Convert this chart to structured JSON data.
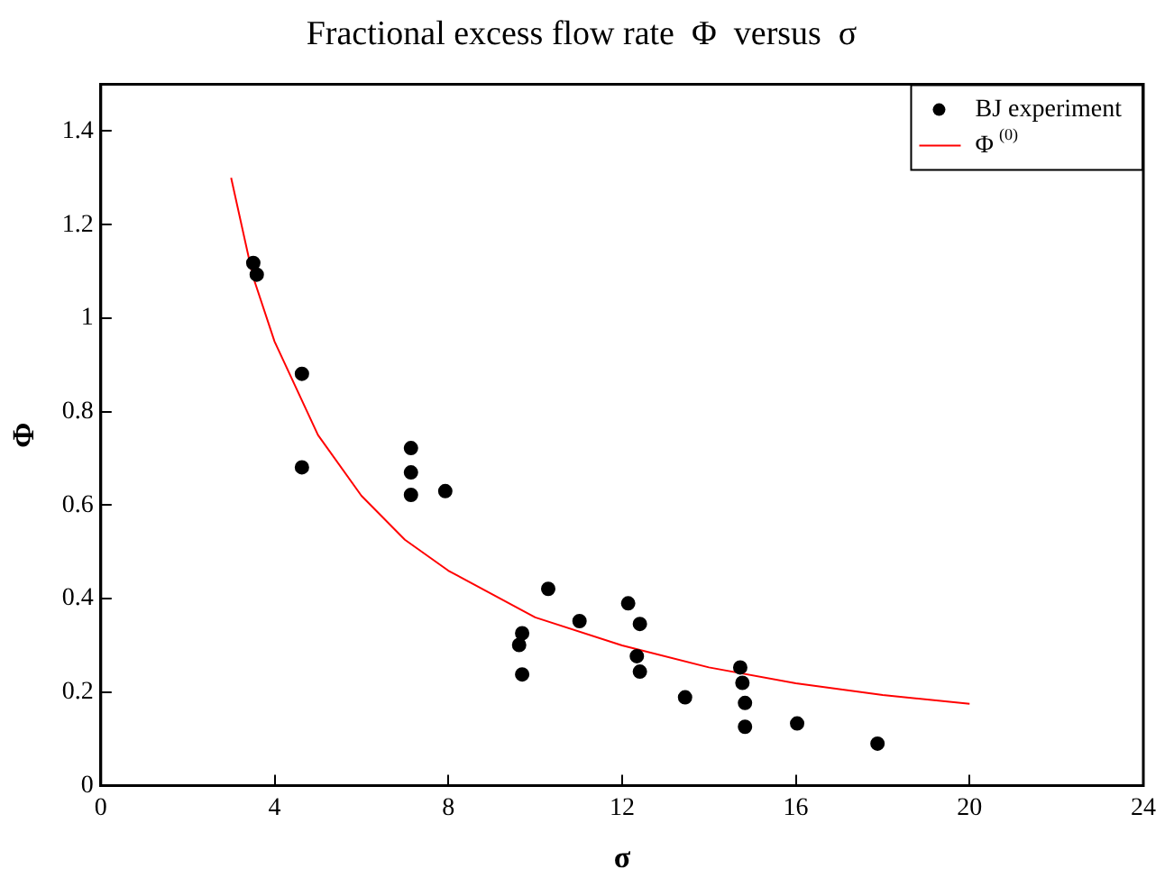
{
  "chart_data": {
    "type": "scatter",
    "title": "Fractional excess flow rate  Φ  versus  σ",
    "xlabel": "σ",
    "ylabel": "Φ",
    "xlim": [
      0,
      24
    ],
    "xticks": [
      0,
      4,
      8,
      12,
      16,
      20,
      24
    ],
    "ylim": [
      0,
      1.5
    ],
    "yticks": [
      0,
      0.2,
      0.4,
      0.6,
      0.8,
      1,
      1.2,
      1.4
    ],
    "grid": false,
    "legend": "top right",
    "marker": "circle",
    "series": [
      {
        "name": "BJ experiment",
        "type": "scatter",
        "color": "#000000",
        "x": [
          3.51,
          3.59,
          4.63,
          4.63,
          7.14,
          7.14,
          7.14,
          7.93,
          10.3,
          9.7,
          9.63,
          9.7,
          11.02,
          12.14,
          12.41,
          12.34,
          12.41,
          13.45,
          14.72,
          14.77,
          14.83,
          14.83,
          16.03,
          17.88
        ],
        "values": [
          1.118,
          1.093,
          0.881,
          0.681,
          0.722,
          0.67,
          0.622,
          0.63,
          0.421,
          0.326,
          0.301,
          0.238,
          0.352,
          0.39,
          0.346,
          0.277,
          0.244,
          0.189,
          0.253,
          0.22,
          0.177,
          0.126,
          0.133,
          0.09
        ]
      },
      {
        "name": "Φ$^{(0)}$",
        "type": "line",
        "color": "#ff0000",
        "marker": "none",
        "line_style": "solid",
        "x": [
          3,
          3.5,
          4,
          5,
          6,
          7,
          8,
          10,
          12,
          14,
          16,
          18,
          20
        ],
        "values": [
          1.3,
          1.09,
          0.95,
          0.75,
          0.62,
          0.526,
          0.46,
          0.36,
          0.3,
          0.253,
          0.219,
          0.194,
          0.175
        ]
      }
    ]
  }
}
